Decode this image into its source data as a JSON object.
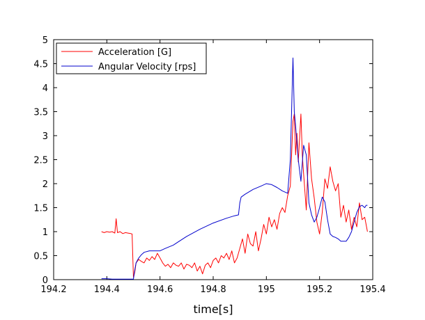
{
  "chart_data": {
    "type": "line",
    "xlabel": "time[s]",
    "xlim": [
      194.2,
      195.4
    ],
    "ylim": [
      0,
      5
    ],
    "x_ticks": [
      "194.2",
      "194.4",
      "194.6",
      "194.8",
      "195",
      "195.2",
      "195.4"
    ],
    "y_ticks": [
      "0",
      "0.5",
      "1",
      "1.5",
      "2",
      "2.5",
      "3",
      "3.5",
      "4",
      "4.5",
      "5"
    ],
    "grid": false,
    "legend_position": "top-left",
    "series": [
      {
        "name": "Acceleration [G]",
        "color": "#ff0000",
        "x": [
          194.38,
          194.39,
          194.4,
          194.41,
          194.42,
          194.43,
          194.435,
          194.44,
          194.45,
          194.46,
          194.47,
          194.48,
          194.49,
          194.495,
          194.5,
          194.505,
          194.51,
          194.52,
          194.53,
          194.54,
          194.55,
          194.56,
          194.57,
          194.58,
          194.59,
          194.6,
          194.61,
          194.62,
          194.63,
          194.64,
          194.65,
          194.66,
          194.67,
          194.68,
          194.69,
          194.7,
          194.71,
          194.72,
          194.73,
          194.74,
          194.75,
          194.76,
          194.77,
          194.78,
          194.79,
          194.8,
          194.81,
          194.82,
          194.83,
          194.84,
          194.85,
          194.86,
          194.87,
          194.88,
          194.89,
          194.9,
          194.91,
          194.92,
          194.93,
          194.94,
          194.95,
          194.96,
          194.97,
          194.98,
          194.99,
          195.0,
          195.01,
          195.02,
          195.03,
          195.04,
          195.05,
          195.06,
          195.07,
          195.08,
          195.09,
          195.1,
          195.105,
          195.11,
          195.115,
          195.12,
          195.13,
          195.135,
          195.14,
          195.15,
          195.16,
          195.17,
          195.18,
          195.19,
          195.2,
          195.21,
          195.22,
          195.23,
          195.24,
          195.25,
          195.26,
          195.27,
          195.28,
          195.29,
          195.3,
          195.31,
          195.32,
          195.33,
          195.34,
          195.35,
          195.36,
          195.37,
          195.38
        ],
        "values": [
          1.0,
          0.98,
          1.0,
          0.99,
          1.0,
          0.97,
          1.27,
          0.98,
          1.0,
          0.96,
          0.98,
          0.97,
          0.96,
          0.95,
          0.05,
          0.15,
          0.35,
          0.42,
          0.38,
          0.35,
          0.45,
          0.4,
          0.48,
          0.42,
          0.55,
          0.45,
          0.35,
          0.28,
          0.32,
          0.25,
          0.35,
          0.3,
          0.28,
          0.35,
          0.22,
          0.32,
          0.3,
          0.25,
          0.35,
          0.18,
          0.28,
          0.12,
          0.3,
          0.35,
          0.25,
          0.4,
          0.45,
          0.35,
          0.5,
          0.45,
          0.55,
          0.42,
          0.6,
          0.35,
          0.45,
          0.65,
          0.85,
          0.55,
          0.95,
          0.75,
          0.7,
          1.0,
          0.6,
          0.85,
          1.15,
          0.95,
          1.3,
          1.1,
          1.25,
          1.05,
          1.38,
          1.5,
          1.4,
          1.75,
          1.95,
          3.3,
          3.45,
          2.6,
          3.05,
          2.45,
          3.45,
          2.6,
          2.2,
          1.45,
          2.85,
          2.1,
          1.7,
          1.2,
          0.95,
          1.4,
          2.1,
          1.9,
          2.35,
          2.05,
          1.85,
          2.0,
          1.3,
          1.55,
          1.2,
          1.45,
          1.05,
          1.3,
          1.1,
          1.6,
          1.25,
          1.3,
          1.0
        ]
      },
      {
        "name": "Angular Velocity [rps]",
        "color": "#0000cc",
        "x": [
          194.38,
          194.4,
          194.42,
          194.44,
          194.46,
          194.48,
          194.49,
          194.5,
          194.505,
          194.51,
          194.52,
          194.53,
          194.54,
          194.56,
          194.58,
          194.6,
          194.62,
          194.65,
          194.7,
          194.75,
          194.8,
          194.85,
          194.88,
          194.895,
          194.9,
          194.905,
          194.92,
          194.95,
          194.98,
          195.0,
          195.02,
          195.04,
          195.06,
          195.08,
          195.09,
          195.1,
          195.105,
          195.11,
          195.12,
          195.13,
          195.14,
          195.15,
          195.16,
          195.17,
          195.18,
          195.19,
          195.2,
          195.21,
          195.22,
          195.23,
          195.24,
          195.25,
          195.26,
          195.27,
          195.28,
          195.3,
          195.31,
          195.32,
          195.33,
          195.34,
          195.35,
          195.36,
          195.37,
          195.375,
          195.38
        ],
        "values": [
          0.02,
          0.02,
          0.01,
          0.01,
          0.01,
          0.01,
          0.01,
          0.01,
          0.2,
          0.35,
          0.45,
          0.52,
          0.57,
          0.6,
          0.6,
          0.6,
          0.65,
          0.72,
          0.9,
          1.05,
          1.18,
          1.28,
          1.33,
          1.35,
          1.6,
          1.72,
          1.78,
          1.88,
          1.95,
          2.0,
          1.98,
          1.92,
          1.85,
          1.8,
          2.5,
          4.62,
          3.5,
          3.2,
          2.5,
          2.05,
          2.8,
          2.6,
          1.6,
          1.35,
          1.2,
          1.3,
          1.5,
          1.72,
          1.62,
          1.25,
          0.95,
          0.9,
          0.88,
          0.85,
          0.8,
          0.8,
          0.88,
          1.0,
          1.2,
          1.4,
          1.52,
          1.55,
          1.5,
          1.55,
          1.55
        ]
      }
    ]
  }
}
